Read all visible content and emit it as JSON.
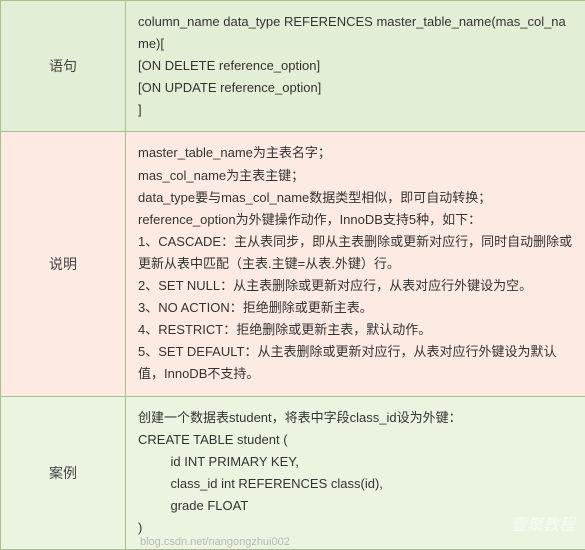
{
  "table": {
    "border_color": "#a8c090",
    "font_family": "Microsoft YaHei",
    "font_size_label": 14,
    "font_size_content": 13,
    "line_height": 1.7,
    "rows": [
      {
        "key": "syntax",
        "bg_color": "#e2efd6",
        "label": "语句",
        "lines": [
          "column_name  data_type REFERENCES master_table_name(mas_col_name)[",
          "[ON DELETE reference_option]",
          "[ON UPDATE reference_option]",
          "]"
        ]
      },
      {
        "key": "desc",
        "bg_color": "#fdebe3",
        "label": "说明",
        "lines": [
          "master_table_name为主表名字；",
          "mas_col_name为主表主键；",
          "data_type要与mas_col_name数据类型相似，即可自动转换；",
          "reference_option为外键操作动作，InnoDB支持5种，如下：",
          "1、CASCADE：主从表同步，即从主表删除或更新对应行，同时自动删除或更新从表中匹配（主表.主键=从表.外键）行。",
          "2、SET NULL：从主表删除或更新对应行，从表对应行外键设为空。",
          "3、NO ACTION：拒绝删除或更新主表。",
          "4、RESTRICT：拒绝删除或更新主表，默认动作。",
          "5、SET DEFAULT：从主表删除或更新对应行，从表对应行外键设为默认值，InnoDB不支持。"
        ]
      },
      {
        "key": "example",
        "bg_color": "#eaf4e0",
        "label": "案例",
        "lines_struct": [
          {
            "text": "创建一个数据表student，将表中字段class_id设为外键：",
            "indent": false
          },
          {
            "text": "CREATE TABLE student (",
            "indent": false
          },
          {
            "text": "id INT PRIMARY KEY,",
            "indent": true
          },
          {
            "text": "class_id int REFERENCES class(id),",
            "indent": true
          },
          {
            "text": "grade FLOAT",
            "indent": true
          },
          {
            "text": ")",
            "indent": false
          }
        ]
      }
    ]
  },
  "watermark": "壹聚教程",
  "footer": "blog.csdn.net/nangongzhui002"
}
